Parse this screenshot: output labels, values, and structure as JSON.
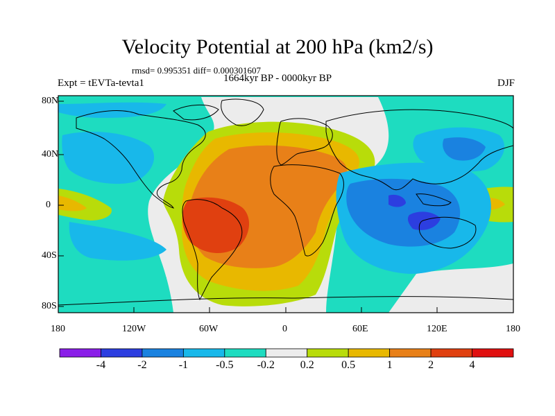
{
  "title": "Velocity Potential at 200 hPa (km2/s)",
  "stats": "rmsd= 0.995351 diff= 0.000301607",
  "period": "1664kyr BP - 0000kyr BP",
  "experiment": "Expt = tEVTa-tevta1",
  "season": "DJF",
  "axes": {
    "lat_labels": [
      "80N",
      "40N",
      "0",
      "40S",
      "80S"
    ],
    "lon_labels": [
      "180",
      "120W",
      "60W",
      "0",
      "60E",
      "120E",
      "180"
    ]
  },
  "colorbar": {
    "labels": [
      "-4",
      "-2",
      "-1",
      "-0.5",
      "-0.2",
      "0.2",
      "0.5",
      "1",
      "2",
      "4"
    ],
    "colors": [
      "#8a1ee8",
      "#2c3ee0",
      "#1a82e0",
      "#18b8ea",
      "#1edcc0",
      "#ececec",
      "#b8dc0a",
      "#e8b800",
      "#e88018",
      "#e04010",
      "#e01010"
    ]
  }
}
